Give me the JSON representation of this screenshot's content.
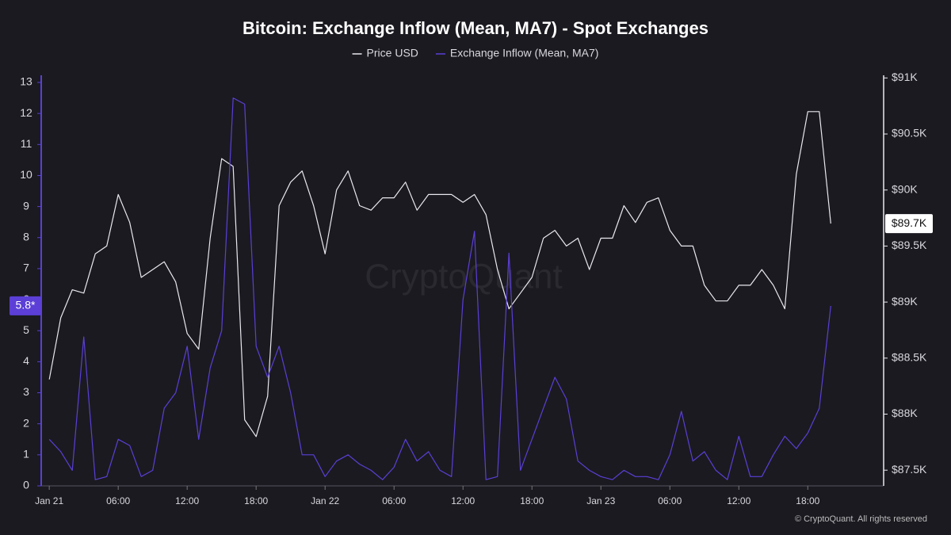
{
  "chart_data": {
    "type": "line",
    "title": "Bitcoin: Exchange Inflow (Mean, MA7) - Spot Exchanges",
    "watermark": "CryptoQuant",
    "copyright": "© CryptoQuant. All rights reserved",
    "x": [
      0,
      1,
      2,
      3,
      4,
      5,
      6,
      7,
      8,
      9,
      10,
      11,
      12,
      13,
      14,
      15,
      16,
      17,
      18,
      19,
      20,
      21,
      22,
      23,
      24,
      25,
      26,
      27,
      28,
      29,
      30,
      31,
      32,
      33,
      34,
      35,
      36,
      37,
      38,
      39,
      40,
      41,
      42,
      43,
      44,
      45,
      46,
      47,
      48,
      49,
      50,
      51,
      52,
      53,
      54,
      55,
      56,
      57,
      58,
      59,
      60,
      61,
      62,
      63,
      64,
      65,
      66,
      67,
      68
    ],
    "xlim": [
      -0.7,
      72.6
    ],
    "xticks": [
      {
        "value": 0,
        "label": "Jan 21"
      },
      {
        "value": 6,
        "label": "06:00"
      },
      {
        "value": 12,
        "label": "12:00"
      },
      {
        "value": 18,
        "label": "18:00"
      },
      {
        "value": 24,
        "label": "Jan 22"
      },
      {
        "value": 30,
        "label": "06:00"
      },
      {
        "value": 36,
        "label": "12:00"
      },
      {
        "value": 42,
        "label": "18:00"
      },
      {
        "value": 48,
        "label": "Jan 23"
      },
      {
        "value": 54,
        "label": "06:00"
      },
      {
        "value": 60,
        "label": "12:00"
      },
      {
        "value": 66,
        "label": "18:00"
      }
    ],
    "ylim": [
      0,
      13
    ],
    "yticks": [
      0,
      1,
      2,
      3,
      4,
      5,
      6,
      7,
      8,
      9,
      10,
      11,
      12,
      13
    ],
    "y2lim": [
      87360,
      90960
    ],
    "y2ticks": [
      {
        "value": 87500,
        "label": "$87.5K"
      },
      {
        "value": 88000,
        "label": "$88K"
      },
      {
        "value": 88500,
        "label": "$88.5K"
      },
      {
        "value": 89000,
        "label": "$89K"
      },
      {
        "value": 89500,
        "label": "$89.5K"
      },
      {
        "value": 90000,
        "label": "$90K"
      },
      {
        "value": 90500,
        "label": "$90.5K"
      },
      {
        "value": 91000,
        "label": "$91K"
      }
    ],
    "series": [
      {
        "name": "Price USD",
        "color": "#e8e8ee",
        "axis": "y2",
        "last_label": "$89.7K",
        "values": [
          88310,
          88860,
          89110,
          89080,
          89430,
          89500,
          89960,
          89710,
          89220,
          89290,
          89360,
          89180,
          88720,
          88580,
          89570,
          90280,
          90210,
          87950,
          87800,
          88160,
          89860,
          90070,
          90170,
          89860,
          89430,
          90000,
          90170,
          89860,
          89820,
          89930,
          89930,
          90070,
          89820,
          89960,
          89960,
          89960,
          89890,
          89960,
          89780,
          89290,
          88940,
          89080,
          89220,
          89570,
          89640,
          89500,
          89570,
          89290,
          89570,
          89570,
          89860,
          89710,
          89890,
          89930,
          89640,
          89500,
          89500,
          89150,
          89010,
          89010,
          89150,
          89150,
          89290,
          89150,
          88940,
          90140,
          90700,
          90700,
          89700
        ]
      },
      {
        "name": "Exchange Inflow (Mean, MA7)",
        "color": "#5b3fd6",
        "last_label": "5.8*",
        "values": [
          1.5,
          1.1,
          0.5,
          4.8,
          0.2,
          0.3,
          1.5,
          1.3,
          0.3,
          0.5,
          2.5,
          3.0,
          4.5,
          1.5,
          3.8,
          5.0,
          12.5,
          12.3,
          4.5,
          3.5,
          4.5,
          3.0,
          1.0,
          1.0,
          0.3,
          0.8,
          1.0,
          0.7,
          0.5,
          0.2,
          0.6,
          1.5,
          0.8,
          1.1,
          0.5,
          0.3,
          6.0,
          8.2,
          0.2,
          0.3,
          7.5,
          0.5,
          1.5,
          2.5,
          3.5,
          2.8,
          0.8,
          0.5,
          0.3,
          0.2,
          0.5,
          0.3,
          0.3,
          0.2,
          1.0,
          2.4,
          0.8,
          1.1,
          0.5,
          0.2,
          1.6,
          0.3,
          0.3,
          1.0,
          1.6,
          1.2,
          1.7,
          2.5,
          5.8
        ]
      }
    ]
  }
}
